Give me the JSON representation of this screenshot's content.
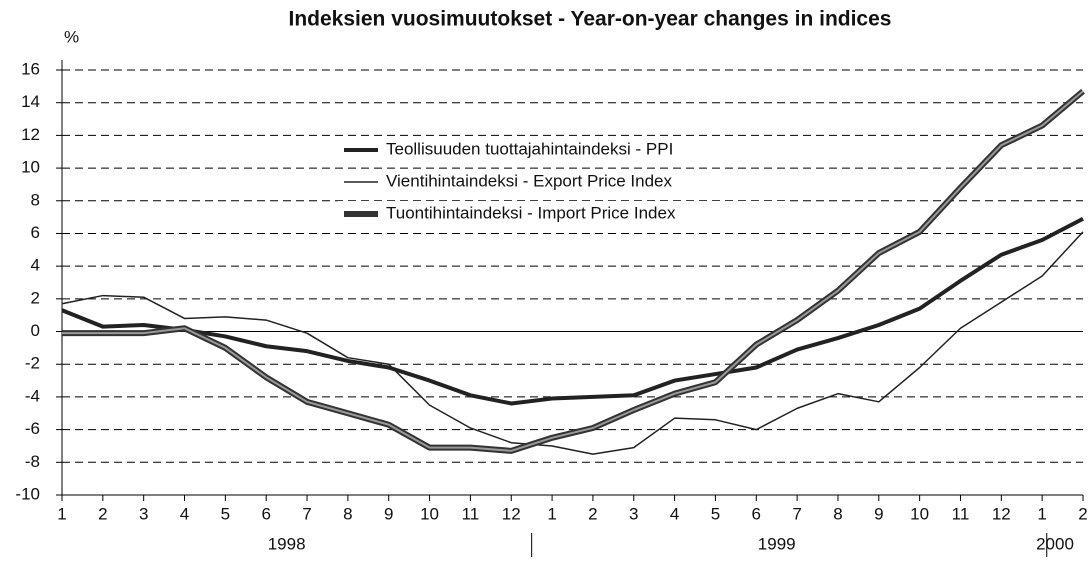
{
  "chart_data": {
    "type": "line",
    "title": "Indeksien vuosimuutokset - Year-on-year changes in indices",
    "y_unit": "%",
    "categories": [
      "1",
      "2",
      "3",
      "4",
      "5",
      "6",
      "7",
      "8",
      "9",
      "10",
      "11",
      "12",
      "1",
      "2",
      "3",
      "4",
      "5",
      "6",
      "7",
      "8",
      "9",
      "10",
      "11",
      "12",
      "1",
      "2"
    ],
    "year_groups": [
      {
        "label": "1998",
        "start": 0,
        "end": 11
      },
      {
        "label": "1999",
        "start": 12,
        "end": 23
      },
      {
        "label": "2000",
        "start": 24,
        "end": 25
      }
    ],
    "series": [
      {
        "name": "Teollisuuden tuottajahintaindeksi - PPI",
        "color": "#222222",
        "width": 4,
        "values": [
          1.3,
          0.3,
          0.4,
          0.1,
          -0.3,
          -0.9,
          -1.2,
          -1.8,
          -2.2,
          -3.0,
          -3.9,
          -4.4,
          -4.1,
          -4.0,
          -3.9,
          -3.0,
          -2.6,
          -2.2,
          -1.1,
          -0.4,
          0.4,
          1.4,
          3.1,
          4.7,
          5.6,
          6.9
        ]
      },
      {
        "name": "Vientihintaindeksi - Export Price Index",
        "color": "#222222",
        "width": 1.5,
        "values": [
          1.7,
          2.2,
          2.1,
          0.8,
          0.9,
          0.7,
          -0.1,
          -1.6,
          -2.0,
          -4.5,
          -5.9,
          -6.8,
          -7.0,
          -7.5,
          -7.1,
          -5.3,
          -5.4,
          -6.0,
          -4.7,
          -3.8,
          -4.3,
          -2.2,
          0.2,
          1.8,
          3.4,
          6.1
        ]
      },
      {
        "name": "Tuontihintaindeksi - Import Price Index",
        "color": "#333333",
        "width": 6,
        "values": [
          -0.1,
          -0.1,
          -0.1,
          0.2,
          -1.0,
          -2.8,
          -4.3,
          -5.0,
          -5.7,
          -7.1,
          -7.1,
          -7.3,
          -6.5,
          -5.9,
          -4.8,
          -3.8,
          -3.1,
          -0.8,
          0.7,
          2.5,
          4.8,
          6.1,
          8.8,
          11.4,
          12.6,
          14.7
        ]
      }
    ],
    "ylim": [
      -10,
      16
    ],
    "yticks": [
      -10,
      -8,
      -6,
      -4,
      -2,
      0,
      2,
      4,
      6,
      8,
      10,
      12,
      14,
      16
    ],
    "grid": true
  }
}
